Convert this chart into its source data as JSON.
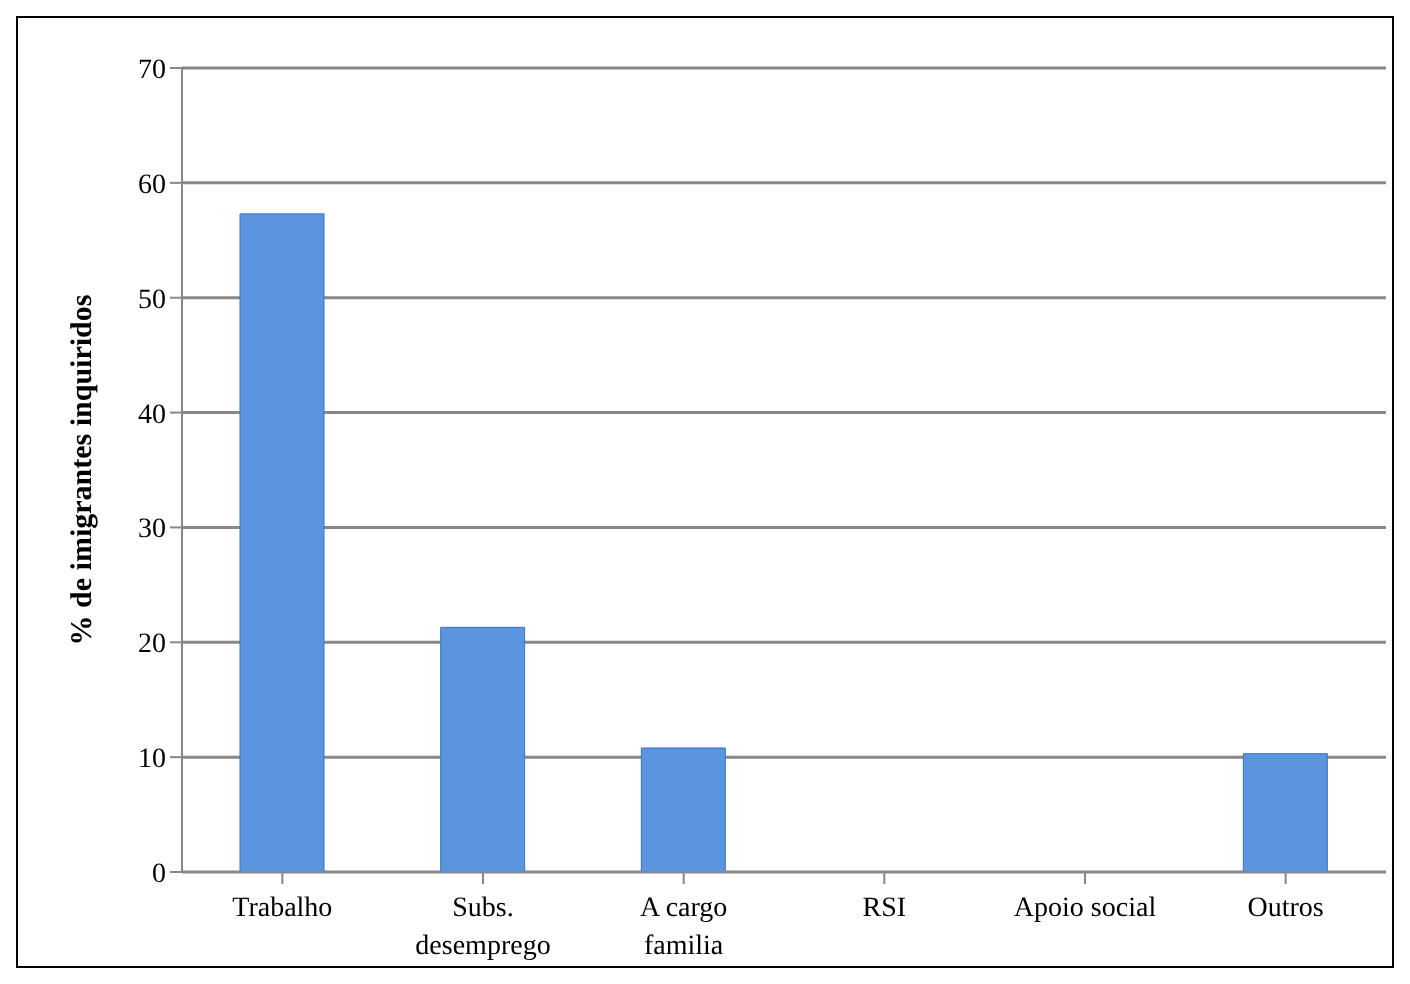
{
  "chart_data": {
    "type": "bar",
    "ylabel": "% de imigrantes inquiridos",
    "categories": [
      "Trabalho",
      "Subs. desemprego",
      "A cargo familia",
      "RSI",
      "Apoio social",
      "Outros"
    ],
    "values": [
      57.3,
      21.3,
      10.8,
      0,
      0,
      10.3
    ],
    "color": "#5b95e0",
    "ylim": [
      0,
      70
    ],
    "yticks": [
      0,
      10,
      20,
      30,
      40,
      50,
      60,
      70
    ],
    "grid": "y"
  }
}
